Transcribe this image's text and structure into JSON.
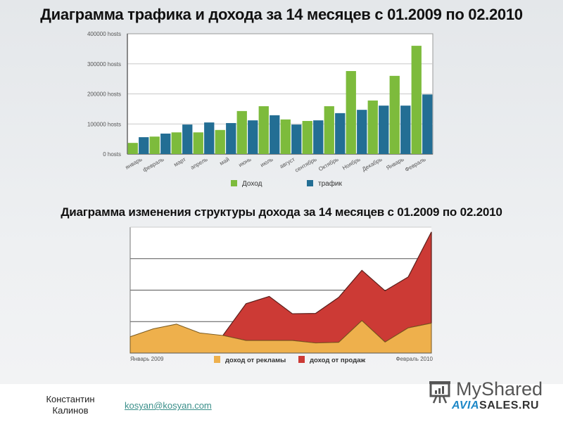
{
  "chart_data": [
    {
      "type": "bar",
      "title": "Диаграмма трафика и дохода за 14 месяцев с 01.2009 по 02.2010",
      "xlabel": "",
      "ylabel": "",
      "ylim": [
        0,
        400000
      ],
      "yticks": [
        "0 hosts",
        "100000 hosts",
        "200000 hosts",
        "300000 hosts",
        "400000 hosts"
      ],
      "grid": true,
      "legend_position": "bottom",
      "categories": [
        "январь",
        "февраль",
        "март",
        "апрель",
        "май",
        "июнь",
        "июль",
        "август",
        "сентябрь",
        "Октябрь",
        "Ноябрь",
        "Декабрь",
        "Январь",
        "Февраль"
      ],
      "series": [
        {
          "name": "Доход",
          "color": "#7dbb3c",
          "values": [
            37000,
            58000,
            72000,
            72000,
            80000,
            143000,
            159000,
            115000,
            110000,
            159000,
            276000,
            178000,
            260000,
            360000
          ]
        },
        {
          "name": "трафик",
          "color": "#236e94",
          "values": [
            56000,
            68000,
            98000,
            105000,
            103000,
            112000,
            129000,
            98000,
            112000,
            136000,
            147000,
            161000,
            161000,
            198000
          ]
        }
      ]
    },
    {
      "type": "area",
      "stacked": true,
      "title": "Диаграмма изменения структуры дохода за 14 месяцев с 01.2009 по 02.2010",
      "xlabel_start": "Январь 2009",
      "xlabel_end": "Февраль 2010",
      "ylim": [
        0,
        4
      ],
      "grid": true,
      "legend_position": "bottom",
      "x": [
        1,
        2,
        3,
        4,
        5,
        6,
        7,
        8,
        9,
        10,
        11,
        12,
        13,
        14
      ],
      "series": [
        {
          "name": "доход от рекламы",
          "color": "#eeb04c",
          "values": [
            0.52,
            0.77,
            0.92,
            0.64,
            0.56,
            0.4,
            0.4,
            0.4,
            0.32,
            0.34,
            1.03,
            0.35,
            0.8,
            0.95
          ]
        },
        {
          "name": "доход от продаж",
          "color": "#cc3a35",
          "values": [
            0,
            0,
            0,
            0,
            0,
            1.17,
            1.4,
            0.85,
            0.94,
            1.43,
            1.6,
            1.63,
            1.62,
            2.9
          ]
        }
      ]
    }
  ],
  "slide": {
    "title_traffic": "Диаграмма трафика и дохода за 14 месяцев с 01.2009 по 02.2010",
    "title_structure": "Диаграмма изменения структуры дохода за 14 месяцев с 01.2009 по 02.2010"
  },
  "footer": {
    "author_first": "Константин",
    "author_last": "Калинов",
    "email": "kosyan@kosyan.com",
    "logo_top": "MyShared",
    "logo_avia": "AVIA",
    "logo_sales": "SALES.RU"
  }
}
